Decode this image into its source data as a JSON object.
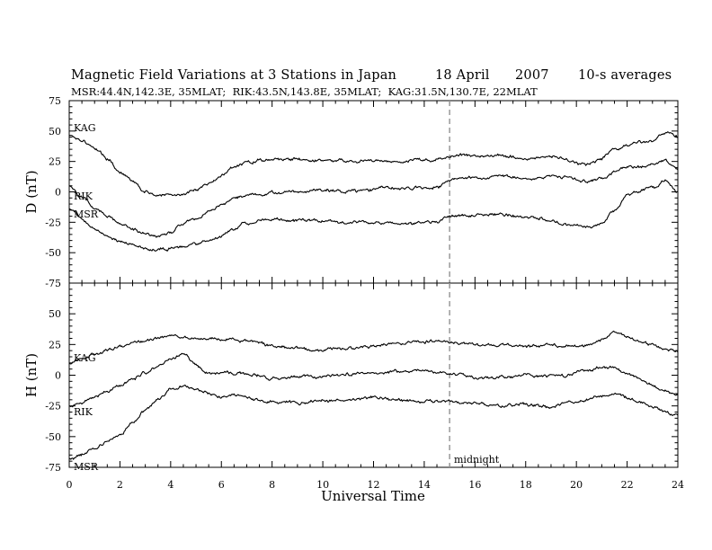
{
  "figure": {
    "title": "Magnetic Field Variations at 3 Stations in Japan",
    "date": "18 April",
    "year": "2007",
    "averaging": "10-s averages",
    "subtitle": "MSR:44.4N,142.3E, 35MLAT;  RIK:43.5N,143.8E, 35MLAT;  KAG:31.5N,130.7E, 22MLAT",
    "xlabel": "Universal Time",
    "marker_label": "midnight",
    "marker_color": "#999999",
    "line_color": "#000000"
  },
  "chart_data": [
    {
      "type": "line",
      "ylabel": "D (nT)",
      "ylim": [
        -75,
        75
      ],
      "yticks": [
        75,
        50,
        25,
        0,
        -25,
        -50,
        -75
      ],
      "xlim": [
        0,
        24
      ],
      "xticks": [
        0,
        2,
        4,
        6,
        8,
        10,
        12,
        14,
        16,
        18,
        20,
        22,
        24
      ],
      "marker_x": 15,
      "series": [
        {
          "name": "KAG",
          "x": [
            0,
            0.5,
            1,
            1.5,
            2,
            2.5,
            3,
            3.5,
            4,
            4.5,
            5,
            5.5,
            6,
            6.5,
            7,
            7.5,
            8,
            9,
            10,
            11,
            12,
            13,
            14,
            14.5,
            15,
            15.5,
            16,
            17,
            18,
            18.5,
            19,
            19.5,
            20,
            20.5,
            21,
            21.5,
            22,
            22.5,
            23,
            23.5,
            24
          ],
          "y": [
            47,
            43,
            36,
            27,
            17,
            8,
            0,
            -3,
            -3,
            -2,
            2,
            7,
            14,
            20,
            24,
            26,
            27,
            27,
            26,
            25,
            25,
            25,
            26,
            26,
            29,
            30,
            30,
            30,
            27,
            28,
            29,
            27,
            24,
            22,
            27,
            35,
            38,
            41,
            43,
            49,
            45
          ]
        },
        {
          "name": "RIK",
          "x": [
            0,
            0.5,
            1,
            1.5,
            2,
            2.5,
            3,
            3.5,
            4,
            4.5,
            5,
            5.5,
            6,
            6.5,
            7,
            7.5,
            8,
            9,
            10,
            11,
            12,
            13,
            14,
            14.5,
            15,
            15.5,
            16,
            17,
            18,
            18.5,
            19,
            19.5,
            20,
            20.5,
            21,
            21.5,
            22,
            22.5,
            23,
            23.5,
            24
          ],
          "y": [
            5,
            -4,
            -13,
            -20,
            -26,
            -31,
            -35,
            -37,
            -34,
            -27,
            -22,
            -17,
            -11,
            -6,
            -3,
            -2,
            -1,
            0,
            1,
            1,
            2,
            3,
            3,
            4,
            10,
            11,
            12,
            13,
            11,
            12,
            13,
            12,
            10,
            8,
            11,
            17,
            21,
            20,
            22,
            26,
            18
          ]
        },
        {
          "name": "MSR",
          "x": [
            0,
            0.5,
            1,
            1.5,
            2,
            2.5,
            3,
            3.5,
            4,
            4.5,
            5,
            5.5,
            6,
            6.5,
            7,
            7.5,
            8,
            9,
            10,
            11,
            12,
            13,
            14,
            14.5,
            15,
            15.5,
            16,
            17,
            18,
            18.5,
            19,
            19.5,
            20,
            20.5,
            21,
            21.5,
            22,
            22.5,
            23,
            23.5,
            24
          ],
          "y": [
            -13,
            -22,
            -30,
            -36,
            -40,
            -43,
            -46,
            -48,
            -47,
            -46,
            -43,
            -40,
            -36,
            -30,
            -26,
            -24,
            -23,
            -23,
            -24,
            -25,
            -25,
            -26,
            -25,
            -25,
            -20,
            -20,
            -19,
            -18,
            -21,
            -22,
            -23,
            -26,
            -28,
            -29,
            -26,
            -15,
            -3,
            1,
            3,
            10,
            -1
          ]
        }
      ]
    },
    {
      "type": "line",
      "ylabel": "H (nT)",
      "ylim": [
        -75,
        75
      ],
      "yticks": [
        75,
        50,
        25,
        0,
        -25,
        -50,
        -75
      ],
      "xlim": [
        0,
        24
      ],
      "xticks": [
        0,
        2,
        4,
        6,
        8,
        10,
        12,
        14,
        16,
        18,
        20,
        22,
        24
      ],
      "xticklabels": [
        "0",
        "2",
        "4",
        "6",
        "8",
        "10",
        "12",
        "14",
        "16",
        "18",
        "20",
        "22",
        "24"
      ],
      "marker_x": 15,
      "series": [
        {
          "name": "KAG",
          "x": [
            0,
            0.5,
            1,
            1.5,
            2,
            2.5,
            3,
            3.5,
            4,
            4.5,
            5,
            5.5,
            6,
            6.5,
            7,
            7.5,
            8,
            9,
            10,
            11,
            12,
            13,
            14,
            14.5,
            15,
            15.5,
            16,
            17,
            18,
            18.5,
            19,
            19.5,
            20,
            20.5,
            21,
            21.5,
            22,
            22.5,
            23,
            23.5,
            24
          ],
          "y": [
            10,
            13,
            17,
            21,
            24,
            26,
            28,
            30,
            32,
            32,
            30,
            30,
            29,
            29,
            28,
            26,
            24,
            22,
            21,
            23,
            24,
            26,
            28,
            28,
            27,
            26,
            25,
            24,
            23,
            24,
            25,
            24,
            23,
            25,
            29,
            34,
            31,
            27,
            24,
            21,
            19
          ]
        },
        {
          "name": "RIK",
          "x": [
            0,
            0.5,
            1,
            1.5,
            2,
            2.5,
            3,
            3.5,
            4,
            4.5,
            5,
            5.5,
            6,
            6.5,
            7,
            7.5,
            8,
            9,
            10,
            11,
            12,
            13,
            14,
            14.5,
            15,
            15.5,
            16,
            17,
            18,
            18.5,
            19,
            19.5,
            20,
            20.5,
            21,
            21.5,
            22,
            22.5,
            23,
            23.5,
            24
          ],
          "y": [
            -25,
            -22,
            -18,
            -13,
            -8,
            -3,
            2,
            7,
            13,
            18,
            8,
            2,
            2,
            2,
            1,
            -1,
            -3,
            -1,
            -1,
            1,
            2,
            3,
            4,
            3,
            2,
            1,
            -1,
            -2,
            0,
            -1,
            0,
            -1,
            2,
            4,
            7,
            6,
            1,
            -3,
            -8,
            -12,
            -16
          ]
        },
        {
          "name": "MSR",
          "x": [
            0,
            0.5,
            1,
            1.5,
            2,
            2.5,
            3,
            3.5,
            4,
            4.5,
            5,
            5.5,
            6,
            6.5,
            7,
            7.5,
            8,
            9,
            10,
            11,
            12,
            13,
            14,
            14.5,
            15,
            15.5,
            16,
            17,
            18,
            18.5,
            19,
            19.5,
            20,
            20.5,
            21,
            21.5,
            22,
            22.5,
            23,
            23.5,
            24
          ],
          "y": [
            -68,
            -65,
            -60,
            -55,
            -48,
            -38,
            -28,
            -20,
            -12,
            -9,
            -10,
            -15,
            -17,
            -17,
            -18,
            -20,
            -22,
            -23,
            -21,
            -20,
            -18,
            -20,
            -22,
            -21,
            -20,
            -22,
            -23,
            -25,
            -24,
            -25,
            -26,
            -24,
            -22,
            -20,
            -17,
            -15,
            -18,
            -22,
            -26,
            -30,
            -34
          ]
        }
      ]
    }
  ]
}
